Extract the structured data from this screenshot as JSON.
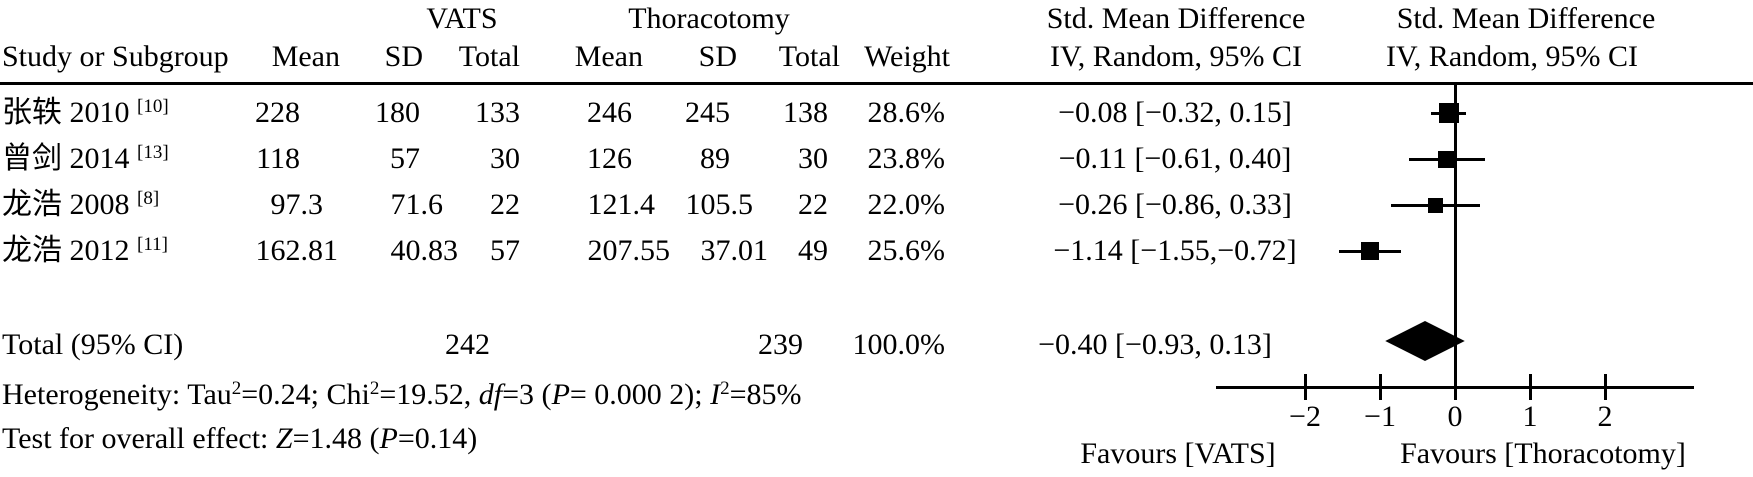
{
  "headers": {
    "group_vats": "VATS",
    "group_thoracotomy": "Thoracotomy",
    "group_smd_text": "Std. Mean Difference",
    "group_smd_plot": "Std. Mean Difference",
    "study": "Study or Subgroup",
    "mean": "Mean",
    "sd": "SD",
    "total": "Total",
    "weight": "Weight",
    "iv_text": "IV, Random, 95% CI",
    "iv_plot": "IV, Random, 95% CI"
  },
  "footnotes": {
    "heterogeneity_segments": [
      {
        "t": "Heterogeneity: Tau"
      },
      {
        "t": "2",
        "sup": true
      },
      {
        "t": "=0.24; Chi"
      },
      {
        "t": "2",
        "sup": true
      },
      {
        "t": "=19.52, "
      },
      {
        "t": "df",
        "i": true
      },
      {
        "t": "=3 ("
      },
      {
        "t": "P",
        "i": true
      },
      {
        "t": "= 0.000 2); "
      },
      {
        "t": "I",
        "i": true
      },
      {
        "t": "2",
        "sup": true
      },
      {
        "t": "=85%"
      }
    ],
    "overall_effect_segments": [
      {
        "t": "Test for overall effect: "
      },
      {
        "t": "Z",
        "i": true
      },
      {
        "t": "=1.48 ("
      },
      {
        "t": "P",
        "i": true
      },
      {
        "t": "=0.14)"
      }
    ]
  },
  "chart_data": {
    "type": "forest",
    "effect_measure": "Std. Mean Difference",
    "method": "IV, Random, 95% CI",
    "studies": [
      {
        "name": "张轶 2010",
        "ref": "[10]",
        "vats_mean": "228",
        "vats_sd": "180",
        "vats_total": "133",
        "thor_mean": "246",
        "thor_sd": "245",
        "thor_total": "138",
        "weight": "28.6%",
        "weight_pct": 28.6,
        "smd": -0.08,
        "ci_lo": -0.32,
        "ci_hi": 0.15,
        "ci_text": "−0.08 [−0.32, 0.15]"
      },
      {
        "name": "曾剑 2014",
        "ref": "[13]",
        "vats_mean": "118",
        "vats_sd": "57",
        "vats_total": "30",
        "thor_mean": "126",
        "thor_sd": "89",
        "thor_total": "30",
        "weight": "23.8%",
        "weight_pct": 23.8,
        "smd": -0.11,
        "ci_lo": -0.61,
        "ci_hi": 0.4,
        "ci_text": "−0.11 [−0.61, 0.40]"
      },
      {
        "name": "龙浩 2008",
        "ref": "[8]",
        "vats_mean": "97.3",
        "vats_sd": "71.6",
        "vats_total": "22",
        "thor_mean": "121.4",
        "thor_sd": "105.5",
        "thor_total": "22",
        "weight": "22.0%",
        "weight_pct": 22.0,
        "smd": -0.26,
        "ci_lo": -0.86,
        "ci_hi": 0.33,
        "ci_text": "−0.26 [−0.86, 0.33]"
      },
      {
        "name": "龙浩 2012",
        "ref": "[11]",
        "vats_mean": "162.81",
        "vats_sd": "40.83",
        "vats_total": "57",
        "thor_mean": "207.55",
        "thor_sd": "37.01",
        "thor_total": "49",
        "weight": "25.6%",
        "weight_pct": 25.6,
        "smd": -1.14,
        "ci_lo": -1.55,
        "ci_hi": -0.72,
        "ci_text": "−1.14 [−1.55,−0.72]"
      }
    ],
    "total": {
      "label": "Total (95% CI)",
      "vats_total": "242",
      "thor_total": "239",
      "weight": "100.0%",
      "weight_pct": 100.0,
      "smd": -0.4,
      "ci_lo": -0.93,
      "ci_hi": 0.13,
      "ci_text": "−0.40 [−0.93, 0.13]"
    },
    "xaxis": {
      "tick_values": [
        -2,
        -1,
        0,
        1,
        2
      ],
      "tick_labels": [
        "−2",
        "−1",
        "0",
        "1",
        "2"
      ],
      "xlim": [
        -3.2,
        3.2
      ]
    },
    "favours_left": "Favours [VATS]",
    "favours_right": "Favours [Thoracotomy]",
    "heterogeneity_plain": "Heterogeneity: Tau²=0.24; Chi²=19.52, df=3 (P= 0.000 2); I²=85%",
    "overall_effect_plain": "Test for overall effect: Z=1.48 (P=0.14)",
    "marker_color": "#000000",
    "line_color": "#000000"
  }
}
